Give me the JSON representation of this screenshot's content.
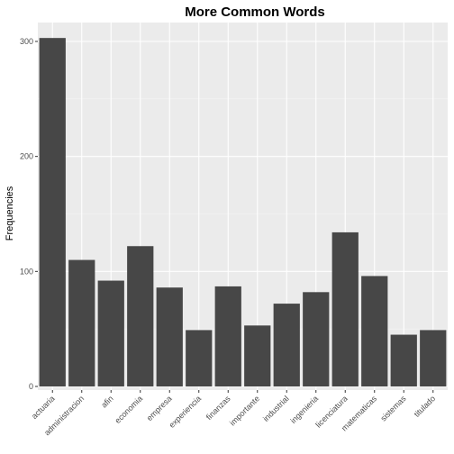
{
  "chart_data": {
    "type": "bar",
    "title": "More Common Words",
    "xlabel": "",
    "ylabel": "Frequencies",
    "categories": [
      "actuaria",
      "administracion",
      "afin",
      "economia",
      "empresa",
      "experiencia",
      "finanzas",
      "importante",
      "industrial",
      "ingenieria",
      "licenciatura",
      "matematicas",
      "sistemas",
      "titulado"
    ],
    "values": [
      303,
      110,
      92,
      122,
      86,
      49,
      87,
      53,
      72,
      82,
      134,
      96,
      45,
      49
    ],
    "ylim": [
      0,
      318
    ],
    "yticks": [
      0,
      100,
      200,
      300
    ],
    "grid": true,
    "legend": "none",
    "colors": {
      "bar": "#474747",
      "panel": "#ebebeb",
      "grid_major": "#ffffff",
      "grid_minor": "#f5f5f5"
    }
  }
}
